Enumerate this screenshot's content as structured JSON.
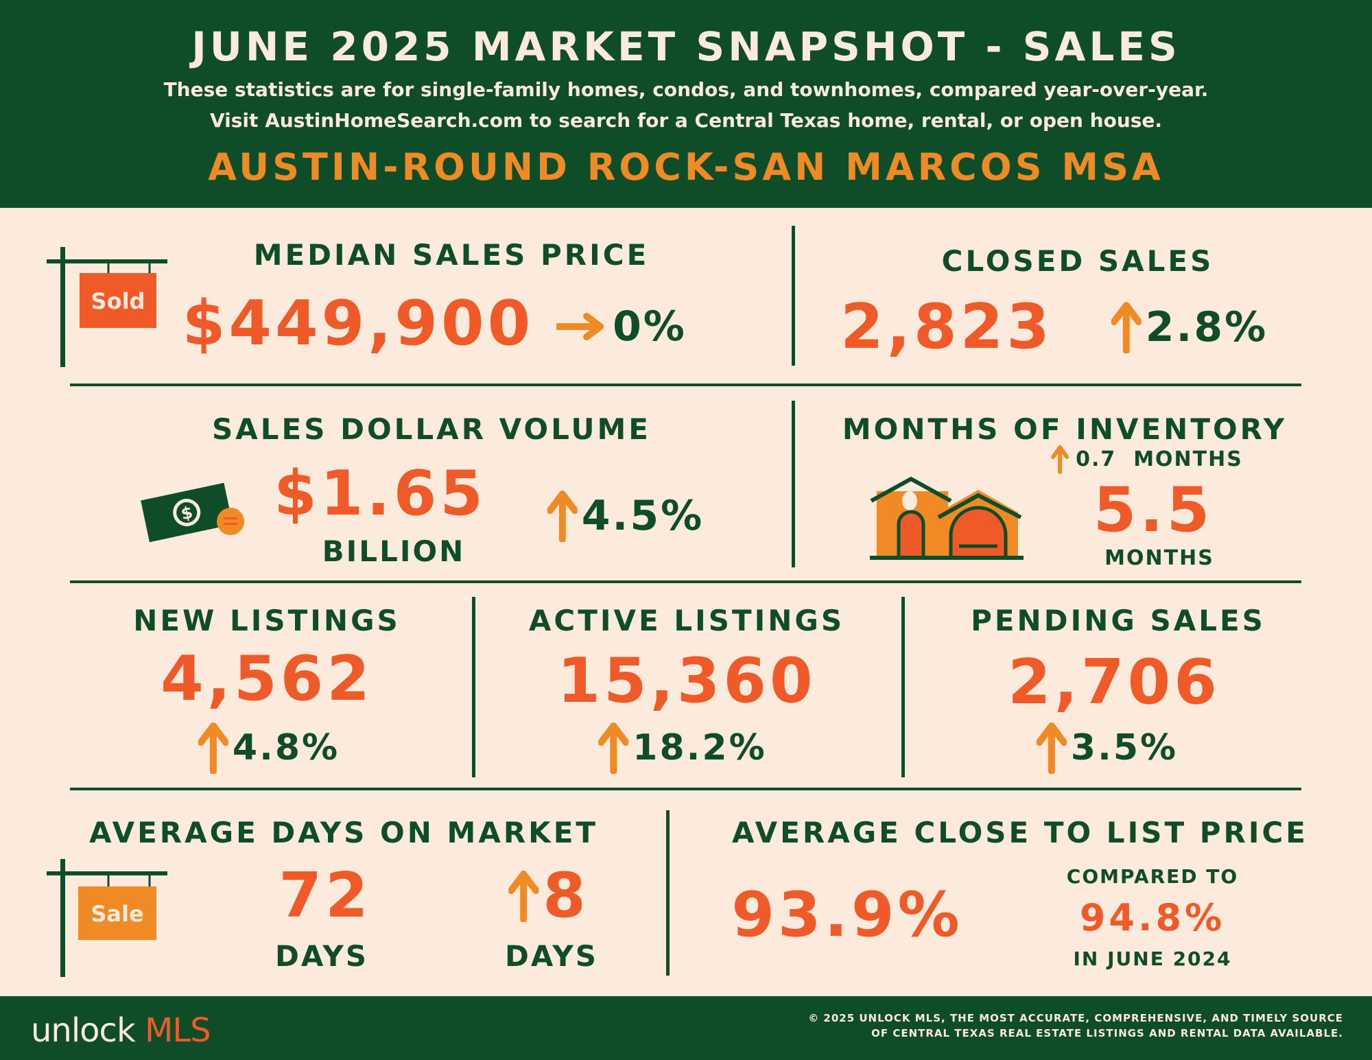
{
  "header": {
    "title": "JUNE 2025 MARKET SNAPSHOT - SALES",
    "subtitle_1": "These statistics are for single-family homes, condos, and townhomes, compared year-over-year.",
    "subtitle_2": "Visit AustinHomeSearch.com to search for a Central Texas home, rental, or open house.",
    "region": "AUSTIN-ROUND ROCK-SAN MARCOS MSA"
  },
  "median": {
    "label": "MEDIAN SALES PRICE",
    "value": "$449,900",
    "change": "0%",
    "direction": "flat",
    "sign_text": "Sold"
  },
  "closed": {
    "label": "CLOSED SALES",
    "value": "2,823",
    "change": "2.8%",
    "direction": "up"
  },
  "volume": {
    "label": "SALES DOLLAR VOLUME",
    "value": "$1.65",
    "unit": "BILLION",
    "change": "4.5%",
    "direction": "up"
  },
  "inventory": {
    "label": "MONTHS OF INVENTORY",
    "change": "0.7  MONTHS",
    "value": "5.5",
    "unit": "MONTHS",
    "direction": "up"
  },
  "new_listings": {
    "label": "NEW LISTINGS",
    "value": "4,562",
    "change": "4.8%"
  },
  "active_listings": {
    "label": "ACTIVE LISTINGS",
    "value": "15,360",
    "change": "18.2%"
  },
  "pending": {
    "label": "PENDING SALES",
    "value": "2,706",
    "change": "3.5%"
  },
  "dom": {
    "label": "AVERAGE DAYS ON MARKET",
    "value": "72",
    "unit": "DAYS",
    "change": "8",
    "change_unit": "DAYS",
    "sign_text": "Sale"
  },
  "close_list": {
    "label": "AVERAGE CLOSE TO LIST PRICE",
    "value": "93.9%",
    "compared_label": "COMPARED TO",
    "compared_value": "94.8%",
    "compared_period": "IN JUNE 2024"
  },
  "footer": {
    "logo_a": "unlock",
    "logo_b": "MLS",
    "note_1": "© 2025 UNLOCK MLS, THE MOST ACCURATE, COMPREHENSIVE, AND TIMELY SOURCE",
    "note_2": "OF CENTRAL TEXAS REAL ESTATE LISTINGS AND RENTAL DATA AVAILABLE."
  },
  "colors": {
    "green": "#0e4d28",
    "cream": "#fcebdc",
    "red_orange": "#f05a28",
    "orange": "#f08a24"
  }
}
